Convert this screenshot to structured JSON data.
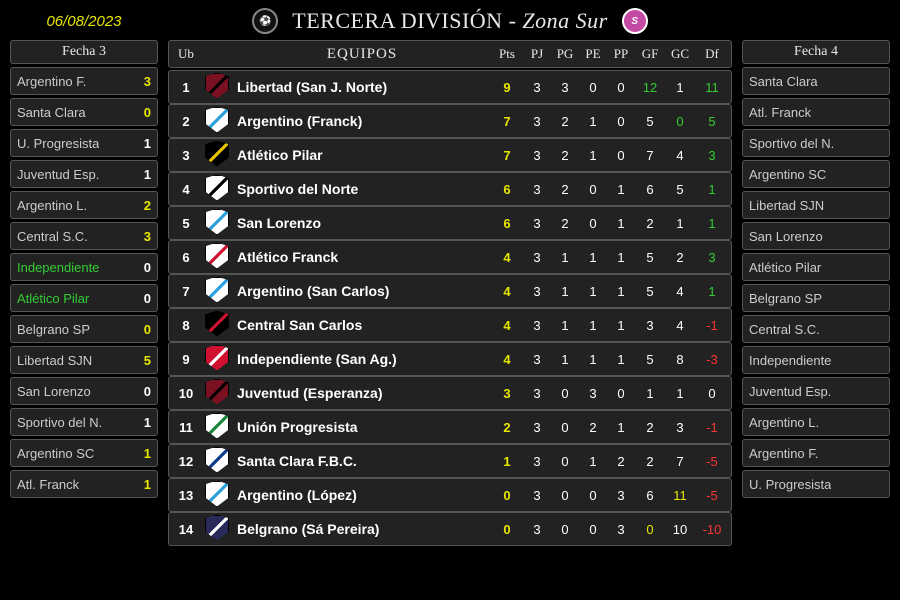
{
  "colors": {
    "bg": "#000000",
    "panel": "#222222",
    "border": "#555555",
    "text": "#cccccc",
    "white": "#ffffff",
    "yellow": "#e6e600",
    "green": "#33cc33",
    "red": "#ff3333"
  },
  "date": "06/08/2023",
  "title": {
    "main": "TERCERA DIVISIÓN",
    "zone": "- Zona Sur"
  },
  "table": {
    "headers": {
      "ub": "Ub",
      "equipos": "EQUIPOS",
      "pts": "Pts",
      "pj": "PJ",
      "pg": "PG",
      "pe": "PE",
      "pp": "PP",
      "gf": "GF",
      "gc": "GC",
      "df": "Df"
    },
    "crests": {
      "1": {
        "bg": "#7a1020",
        "stripe": "#000000"
      },
      "2": {
        "bg": "#ffffff",
        "stripe": "#2aa0e0"
      },
      "3": {
        "bg": "#000000",
        "stripe": "#e6c200"
      },
      "4": {
        "bg": "#ffffff",
        "stripe": "#000000"
      },
      "5": {
        "bg": "#ffffff",
        "stripe": "#2aa0e0"
      },
      "6": {
        "bg": "#ffffff",
        "stripe": "#d01030"
      },
      "7": {
        "bg": "#ffffff",
        "stripe": "#2aa0e0"
      },
      "8": {
        "bg": "#000000",
        "stripe": "#d01030"
      },
      "9": {
        "bg": "#d01030",
        "stripe": "#ffffff"
      },
      "10": {
        "bg": "#7a1020",
        "stripe": "#000000"
      },
      "11": {
        "bg": "#ffffff",
        "stripe": "#1a8a3a"
      },
      "12": {
        "bg": "#ffffff",
        "stripe": "#103a8a"
      },
      "13": {
        "bg": "#ffffff",
        "stripe": "#2aa0e0"
      },
      "14": {
        "bg": "#2a2a5a",
        "stripe": "#ffffff"
      }
    },
    "rows": [
      {
        "pos": 1,
        "name": "Libertad (San J. Norte)",
        "pts": 9,
        "pj": 3,
        "pg": 3,
        "pe": 0,
        "pp": 0,
        "gf": 12,
        "gc": 1,
        "df": 11,
        "pts_c": "yellow",
        "gf_c": "green",
        "gc_c": "white",
        "df_c": "green"
      },
      {
        "pos": 2,
        "name": "Argentino (Franck)",
        "pts": 7,
        "pj": 3,
        "pg": 2,
        "pe": 1,
        "pp": 0,
        "gf": 5,
        "gc": 0,
        "df": 5,
        "pts_c": "yellow",
        "gf_c": "white",
        "gc_c": "green",
        "df_c": "green"
      },
      {
        "pos": 3,
        "name": "Atlético Pilar",
        "pts": 7,
        "pj": 3,
        "pg": 2,
        "pe": 1,
        "pp": 0,
        "gf": 7,
        "gc": 4,
        "df": 3,
        "pts_c": "yellow",
        "gf_c": "white",
        "gc_c": "white",
        "df_c": "green"
      },
      {
        "pos": 4,
        "name": "Sportivo del Norte",
        "pts": 6,
        "pj": 3,
        "pg": 2,
        "pe": 0,
        "pp": 1,
        "gf": 6,
        "gc": 5,
        "df": 1,
        "pts_c": "yellow",
        "gf_c": "white",
        "gc_c": "white",
        "df_c": "green"
      },
      {
        "pos": 5,
        "name": "San Lorenzo",
        "pts": 6,
        "pj": 3,
        "pg": 2,
        "pe": 0,
        "pp": 1,
        "gf": 2,
        "gc": 1,
        "df": 1,
        "pts_c": "yellow",
        "gf_c": "white",
        "gc_c": "white",
        "df_c": "green"
      },
      {
        "pos": 6,
        "name": "Atlético Franck",
        "pts": 4,
        "pj": 3,
        "pg": 1,
        "pe": 1,
        "pp": 1,
        "gf": 5,
        "gc": 2,
        "df": 3,
        "pts_c": "yellow",
        "gf_c": "white",
        "gc_c": "white",
        "df_c": "green"
      },
      {
        "pos": 7,
        "name": "Argentino (San Carlos)",
        "pts": 4,
        "pj": 3,
        "pg": 1,
        "pe": 1,
        "pp": 1,
        "gf": 5,
        "gc": 4,
        "df": 1,
        "pts_c": "yellow",
        "gf_c": "white",
        "gc_c": "white",
        "df_c": "green"
      },
      {
        "pos": 8,
        "name": "Central San Carlos",
        "pts": 4,
        "pj": 3,
        "pg": 1,
        "pe": 1,
        "pp": 1,
        "gf": 3,
        "gc": 4,
        "df": -1,
        "pts_c": "yellow",
        "gf_c": "white",
        "gc_c": "white",
        "df_c": "red"
      },
      {
        "pos": 9,
        "name": "Independiente (San Ag.)",
        "pts": 4,
        "pj": 3,
        "pg": 1,
        "pe": 1,
        "pp": 1,
        "gf": 5,
        "gc": 8,
        "df": -3,
        "pts_c": "yellow",
        "gf_c": "white",
        "gc_c": "white",
        "df_c": "red"
      },
      {
        "pos": 10,
        "name": "Juventud (Esperanza)",
        "pts": 3,
        "pj": 3,
        "pg": 0,
        "pe": 3,
        "pp": 0,
        "gf": 1,
        "gc": 1,
        "df": 0,
        "pts_c": "yellow",
        "gf_c": "white",
        "gc_c": "white",
        "df_c": "white"
      },
      {
        "pos": 11,
        "name": "Unión Progresista",
        "pts": 2,
        "pj": 3,
        "pg": 0,
        "pe": 2,
        "pp": 1,
        "gf": 2,
        "gc": 3,
        "df": -1,
        "pts_c": "yellow",
        "gf_c": "white",
        "gc_c": "white",
        "df_c": "red"
      },
      {
        "pos": 12,
        "name": "Santa Clara F.B.C.",
        "pts": 1,
        "pj": 3,
        "pg": 0,
        "pe": 1,
        "pp": 2,
        "gf": 2,
        "gc": 7,
        "df": -5,
        "pts_c": "yellow",
        "gf_c": "white",
        "gc_c": "white",
        "df_c": "red"
      },
      {
        "pos": 13,
        "name": "Argentino (López)",
        "pts": 0,
        "pj": 3,
        "pg": 0,
        "pe": 0,
        "pp": 3,
        "gf": 6,
        "gc": 11,
        "df": -5,
        "pts_c": "yellow",
        "gf_c": "white",
        "gc_c": "yellow",
        "df_c": "red"
      },
      {
        "pos": 14,
        "name": "Belgrano (Sá Pereira)",
        "pts": 0,
        "pj": 3,
        "pg": 0,
        "pe": 0,
        "pp": 3,
        "gf": 0,
        "gc": 10,
        "df": -10,
        "pts_c": "yellow",
        "gf_c": "yellow",
        "gc_c": "white",
        "df_c": "red"
      }
    ]
  },
  "left": {
    "header": "Fecha 3",
    "matches": [
      {
        "home": {
          "n": "Argentino F.",
          "s": 3,
          "nc": "text",
          "sc": "yellow"
        },
        "away": {
          "n": "Santa Clara",
          "s": 0,
          "nc": "text",
          "sc": "yellow"
        }
      },
      {
        "home": {
          "n": "U. Progresista",
          "s": 1,
          "nc": "text",
          "sc": "white"
        },
        "away": {
          "n": "Juventud Esp.",
          "s": 1,
          "nc": "text",
          "sc": "white"
        }
      },
      {
        "home": {
          "n": "Argentino L.",
          "s": 2,
          "nc": "text",
          "sc": "yellow"
        },
        "away": {
          "n": "Central S.C.",
          "s": 3,
          "nc": "text",
          "sc": "yellow"
        }
      },
      {
        "home": {
          "n": "Independiente",
          "s": 0,
          "nc": "green",
          "sc": "white"
        },
        "away": {
          "n": "Atlético Pilar",
          "s": 0,
          "nc": "green",
          "sc": "white"
        }
      },
      {
        "home": {
          "n": "Belgrano SP",
          "s": 0,
          "nc": "text",
          "sc": "yellow"
        },
        "away": {
          "n": "Libertad SJN",
          "s": 5,
          "nc": "text",
          "sc": "yellow"
        }
      },
      {
        "home": {
          "n": "San Lorenzo",
          "s": 0,
          "nc": "text",
          "sc": "white"
        },
        "away": {
          "n": "Sportivo del N.",
          "s": 1,
          "nc": "text",
          "sc": "white"
        }
      },
      {
        "home": {
          "n": "Argentino SC",
          "s": 1,
          "nc": "text",
          "sc": "yellow"
        },
        "away": {
          "n": "Atl. Franck",
          "s": 1,
          "nc": "text",
          "sc": "yellow"
        }
      }
    ]
  },
  "right": {
    "header": "Fecha 4",
    "matches": [
      {
        "home": {
          "n": "Santa Clara"
        },
        "away": {
          "n": "Atl. Franck"
        }
      },
      {
        "home": {
          "n": "Sportivo del N."
        },
        "away": {
          "n": "Argentino SC"
        }
      },
      {
        "home": {
          "n": "Libertad SJN"
        },
        "away": {
          "n": "San Lorenzo"
        }
      },
      {
        "home": {
          "n": "Atlético Pilar"
        },
        "away": {
          "n": "Belgrano SP"
        }
      },
      {
        "home": {
          "n": "Central S.C."
        },
        "away": {
          "n": "Independiente"
        }
      },
      {
        "home": {
          "n": "Juventud Esp."
        },
        "away": {
          "n": "Argentino L."
        }
      },
      {
        "home": {
          "n": "Argentino F."
        },
        "away": {
          "n": "U. Progresista"
        }
      }
    ]
  }
}
